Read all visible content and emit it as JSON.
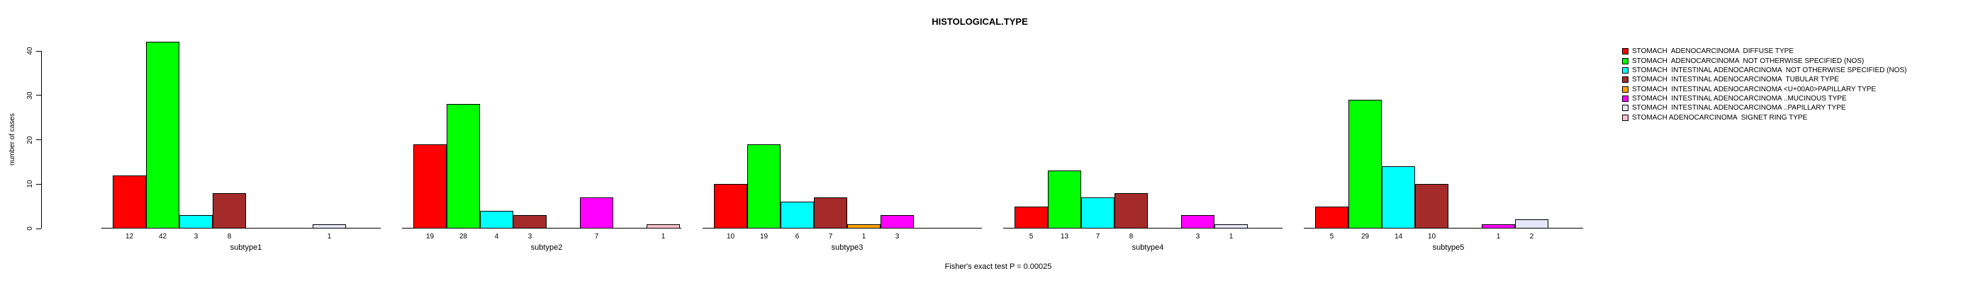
{
  "title": "HISTOLOGICAL.TYPE",
  "footer": "Fisher's exact test P = 0.00025",
  "y_axis": {
    "label": "number of cases",
    "ticks": [
      0,
      10,
      20,
      30,
      40
    ],
    "max": 40
  },
  "legend_items": [
    {
      "color": "#FF0000",
      "label": "STOMACH  ADENOCARCINOMA  DIFFUSE TYPE"
    },
    {
      "color": "#00FF00",
      "label": "STOMACH  ADENOCARCINOMA  NOT OTHERWISE SPECIFIED (NOS)"
    },
    {
      "color": "#00FFFF",
      "label": "STOMACH  INTESTINAL ADENOCARCINOMA  NOT OTHERWISE SPECIFIED (NOS)"
    },
    {
      "color": "#A52A2A",
      "label": "STOMACH  INTESTINAL ADENOCARCINOMA  TUBULAR TYPE"
    },
    {
      "color": "#FFA500",
      "label": "STOMACH  INTESTINAL ADENOCARCINOMA <U+00A0>PAPILLARY TYPE"
    },
    {
      "color": "#FF00FF",
      "label": "STOMACH  INTESTINAL ADENOCARCINOMA ..MUCINOUS TYPE"
    },
    {
      "color": "#E6E6FA",
      "label": "STOMACH  INTESTINAL ADENOCARCINOMA ..PAPILLARY TYPE"
    },
    {
      "color": "#FFC0CB",
      "label": "STOMACH ADENOCARCINOMA  SIGNET RING TYPE"
    }
  ],
  "chart_data": {
    "type": "bar",
    "title": "HISTOLOGICAL.TYPE",
    "xlabel": "",
    "ylabel": "number of cases",
    "ylim": [
      0,
      40
    ],
    "grid": false,
    "legend_position": "right",
    "categories": [
      "subtype1",
      "subtype2",
      "subtype3",
      "subtype4",
      "subtype5"
    ],
    "series": [
      {
        "name": "STOMACH  ADENOCARCINOMA  DIFFUSE TYPE",
        "color": "#FF0000",
        "values": [
          12,
          19,
          10,
          5,
          5
        ]
      },
      {
        "name": "STOMACH  ADENOCARCINOMA  NOT OTHERWISE SPECIFIED (NOS)",
        "color": "#00FF00",
        "values": [
          42,
          28,
          19,
          13,
          29
        ]
      },
      {
        "name": "STOMACH  INTESTINAL ADENOCARCINOMA  NOT OTHERWISE SPECIFIED (NOS)",
        "color": "#00FFFF",
        "values": [
          3,
          4,
          6,
          7,
          14
        ]
      },
      {
        "name": "STOMACH  INTESTINAL ADENOCARCINOMA  TUBULAR TYPE",
        "color": "#A52A2A",
        "values": [
          8,
          3,
          7,
          8,
          10
        ]
      },
      {
        "name": "STOMACH  INTESTINAL ADENOCARCINOMA <U+00A0>PAPILLARY TYPE",
        "color": "#FFA500",
        "values": [
          0,
          0,
          1,
          0,
          0
        ]
      },
      {
        "name": "STOMACH  INTESTINAL ADENOCARCINOMA ..MUCINOUS TYPE",
        "color": "#FF00FF",
        "values": [
          0,
          7,
          3,
          3,
          1
        ]
      },
      {
        "name": "STOMACH  INTESTINAL ADENOCARCINOMA ..PAPILLARY TYPE",
        "color": "#E6E6FA",
        "values": [
          1,
          0,
          0,
          1,
          2
        ]
      },
      {
        "name": "STOMACH ADENOCARCINOMA  SIGNET RING TYPE",
        "color": "#FFC0CB",
        "values": [
          0,
          1,
          0,
          0,
          0
        ]
      }
    ],
    "bar_value_labels_shown_only_when_nonzero": true,
    "annotation": "Fisher's exact test P = 0.00025"
  }
}
